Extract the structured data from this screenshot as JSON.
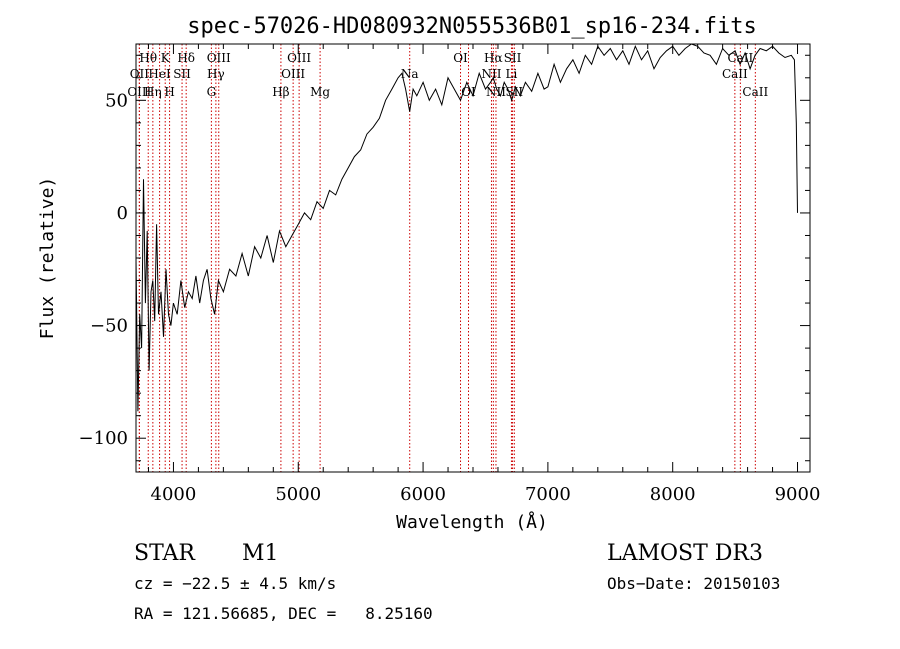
{
  "chart_data": {
    "type": "line",
    "title": "spec-57026-HD080932N055536B01_sp16-234.fits",
    "xlabel": "Wavelength (Å)",
    "ylabel": "Flux (relative)",
    "xlim": [
      3700,
      9100
    ],
    "ylim": [
      -115,
      75
    ],
    "x_ticks": [
      4000,
      5000,
      6000,
      7000,
      8000,
      9000
    ],
    "y_ticks": [
      -100,
      -50,
      0,
      50
    ],
    "grid": false,
    "line_color": "#000000",
    "marker_color": "#cc0000",
    "series": [
      {
        "x": [
          3700,
          3715,
          3730,
          3745,
          3760,
          3775,
          3790,
          3805,
          3820,
          3835,
          3850,
          3865,
          3880,
          3900,
          3920,
          3940,
          3960,
          3980,
          4000,
          4030,
          4060,
          4090,
          4120,
          4150,
          4180,
          4210,
          4240,
          4270,
          4300,
          4330,
          4360,
          4400,
          4450,
          4500,
          4550,
          4600,
          4650,
          4700,
          4750,
          4800,
          4850,
          4900,
          4950,
          5000,
          5050,
          5100,
          5150,
          5200,
          5250,
          5300,
          5350,
          5400,
          5450,
          5500,
          5550,
          5600,
          5650,
          5700,
          5750,
          5800,
          5830,
          5860,
          5893,
          5920,
          5950,
          6000,
          6050,
          6100,
          6150,
          6200,
          6250,
          6300,
          6350,
          6400,
          6450,
          6500,
          6540,
          6563,
          6590,
          6620,
          6650,
          6680,
          6710,
          6740,
          6780,
          6820,
          6870,
          6920,
          6970,
          7000,
          7050,
          7100,
          7150,
          7200,
          7250,
          7300,
          7350,
          7400,
          7450,
          7500,
          7550,
          7600,
          7650,
          7700,
          7750,
          7800,
          7850,
          7900,
          7950,
          8000,
          8050,
          8100,
          8150,
          8200,
          8250,
          8300,
          8350,
          8400,
          8450,
          8500,
          8540,
          8580,
          8620,
          8660,
          8700,
          8750,
          8800,
          8850,
          8900,
          8950,
          8975,
          8990,
          9000
        ],
        "values": [
          -20,
          -88,
          -45,
          -60,
          15,
          -40,
          -8,
          -70,
          -35,
          -30,
          -48,
          -5,
          -45,
          -35,
          -55,
          -25,
          -45,
          -50,
          -40,
          -45,
          -30,
          -42,
          -35,
          -38,
          -28,
          -40,
          -30,
          -25,
          -38,
          -45,
          -30,
          -35,
          -25,
          -28,
          -18,
          -28,
          -15,
          -20,
          -10,
          -22,
          -8,
          -15,
          -10,
          -5,
          0,
          -3,
          5,
          2,
          10,
          8,
          15,
          20,
          25,
          28,
          35,
          38,
          42,
          50,
          55,
          60,
          62,
          55,
          45,
          55,
          52,
          58,
          50,
          55,
          48,
          60,
          55,
          50,
          58,
          52,
          62,
          55,
          58,
          60,
          55,
          52,
          58,
          55,
          50,
          56,
          52,
          58,
          54,
          62,
          55,
          56,
          66,
          58,
          64,
          68,
          62,
          70,
          66,
          74,
          70,
          73,
          68,
          72,
          66,
          74,
          68,
          72,
          64,
          69,
          72,
          74,
          70,
          73,
          75,
          74,
          71,
          70,
          66,
          73,
          70,
          72,
          66,
          71,
          64,
          70,
          73,
          72,
          74,
          71,
          69,
          70,
          68,
          40,
          0
        ]
      }
    ],
    "line_markers": [
      {
        "label": "Hθ",
        "x": 3798,
        "row": 1
      },
      {
        "label": "OII",
        "x": 3727,
        "row": 2
      },
      {
        "label": "OIII",
        "x": 3727,
        "row": 3
      },
      {
        "label": "K",
        "x": 3934,
        "row": 1
      },
      {
        "label": "HeI",
        "x": 3889,
        "row": 2
      },
      {
        "label": "Hη",
        "x": 3835,
        "row": 3
      },
      {
        "label": "Hδ",
        "x": 4102,
        "row": 1
      },
      {
        "label": "SII",
        "x": 4069,
        "row": 2
      },
      {
        "label": "H",
        "x": 3969,
        "row": 3
      },
      {
        "label": "OIII",
        "x": 4363,
        "row": 1
      },
      {
        "label": "Hγ",
        "x": 4340,
        "row": 2
      },
      {
        "label": "G",
        "x": 4304,
        "row": 3
      },
      {
        "label": "OIII",
        "x": 5007,
        "row": 1
      },
      {
        "label": "OIII",
        "x": 4959,
        "row": 2
      },
      {
        "label": "Hβ",
        "x": 4861,
        "row": 3
      },
      {
        "label": "Mg",
        "x": 5175,
        "row": 3
      },
      {
        "label": "Na",
        "x": 5893,
        "row": 2
      },
      {
        "label": "OI",
        "x": 6300,
        "row": 1
      },
      {
        "label": "OI",
        "x": 6364,
        "row": 3
      },
      {
        "label": "Hα",
        "x": 6563,
        "row": 1
      },
      {
        "label": "NII",
        "x": 6548,
        "row": 2
      },
      {
        "label": "NII",
        "x": 6584,
        "row": 3
      },
      {
        "label": "SII",
        "x": 6717,
        "row": 1
      },
      {
        "label": "Li",
        "x": 6708,
        "row": 2
      },
      {
        "label": "SII",
        "x": 6731,
        "row": 3
      },
      {
        "label": "CaII",
        "x": 8498,
        "row": 2
      },
      {
        "label": "CaII",
        "x": 8542,
        "row": 1
      },
      {
        "label": "CaII",
        "x": 8662,
        "row": 3
      }
    ]
  },
  "info": {
    "object_class": "STAR",
    "subclass": "M1",
    "survey": "LAMOST DR3",
    "cz": "cz = −22.5 ± 4.5 km/s",
    "obs_date": "Obs−Date: 20150103",
    "coords": "RA = 121.56685, DEC =   8.25160"
  }
}
